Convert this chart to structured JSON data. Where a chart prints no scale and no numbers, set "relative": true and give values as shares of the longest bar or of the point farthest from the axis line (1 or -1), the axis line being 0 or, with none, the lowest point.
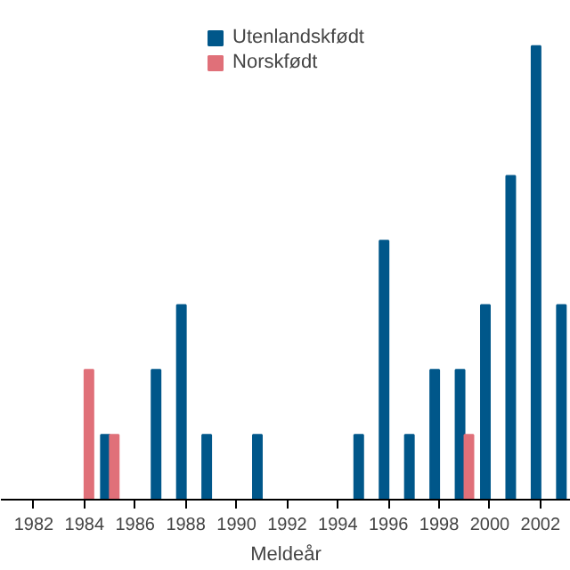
{
  "chart_data": {
    "type": "bar",
    "relative": true,
    "xlabel": "Meldeår",
    "xlim": [
      1980.7,
      2003.2
    ],
    "xticks": [
      1982,
      1984,
      1986,
      1988,
      1990,
      1992,
      1994,
      1996,
      1998,
      2000,
      2002
    ],
    "legend": "top",
    "grid": false,
    "series": [
      {
        "name": "Utenlandskfødt",
        "color": "#00578a",
        "x": [
          1985,
          1987,
          1988,
          1989,
          1991,
          1995,
          1996,
          1997,
          1998,
          1999,
          2000,
          2001,
          2002,
          2003
        ],
        "values": [
          0.143,
          0.286,
          0.429,
          0.143,
          0.143,
          0.143,
          0.571,
          0.143,
          0.286,
          0.286,
          0.429,
          0.714,
          1,
          0.429
        ]
      },
      {
        "name": "Norskfødt",
        "color": "#e07079",
        "x": [
          1984,
          1985,
          1999
        ],
        "values": [
          0.286,
          0.143,
          0.143
        ]
      }
    ]
  }
}
